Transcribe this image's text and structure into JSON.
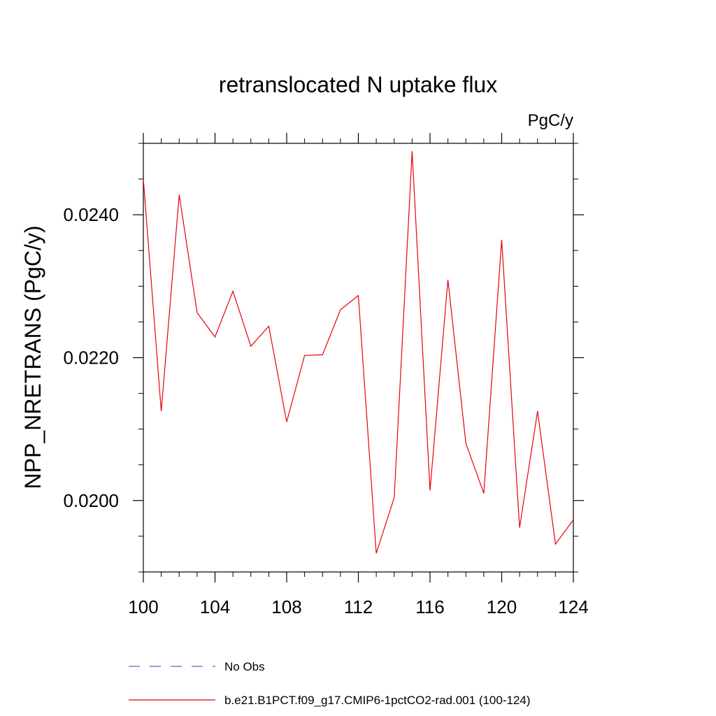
{
  "chart_data": {
    "type": "line",
    "title": "retranslocated N uptake flux",
    "units_label": "PgC/y",
    "ylabel": "NPP_NRETRANS  (PgC/y)",
    "xlabel": "",
    "xlim": [
      100,
      124
    ],
    "ylim": [
      0.019,
      0.025
    ],
    "x_ticks": [
      100,
      104,
      108,
      112,
      116,
      120,
      124
    ],
    "x_tick_labels": [
      "100",
      "104",
      "108",
      "112",
      "116",
      "120",
      "124"
    ],
    "y_ticks": [
      0.02,
      0.022,
      0.024
    ],
    "y_tick_labels": [
      "0.0200",
      "0.0220",
      "0.0240"
    ],
    "x": [
      100,
      101,
      102,
      103,
      104,
      105,
      106,
      107,
      108,
      109,
      110,
      111,
      112,
      113,
      114,
      115,
      116,
      117,
      118,
      119,
      120,
      121,
      122,
      123,
      124
    ],
    "series": [
      {
        "name": "b.e21.B1PCT.f09_g17.CMIP6-1pctCO2-rad.001 (100-124)",
        "color": "#e8000b",
        "values": [
          0.0245,
          0.02125,
          0.02428,
          0.02263,
          0.02229,
          0.02293,
          0.02216,
          0.02244,
          0.0211,
          0.02203,
          0.02204,
          0.02267,
          0.02287,
          0.01926,
          0.02004,
          0.02489,
          0.02014,
          0.02309,
          0.0208,
          0.0201,
          0.02365,
          0.01962,
          0.02125,
          0.01939,
          0.01973
        ]
      }
    ],
    "legend": {
      "placement": "bottom",
      "entries": [
        {
          "label": "No Obs",
          "color": "#6a5acd",
          "style": "dashed"
        },
        {
          "label": "b.e21.B1PCT.f09_g17.CMIP6-1pctCO2-rad.001 (100-124)",
          "color": "#e8000b",
          "style": "solid"
        }
      ]
    },
    "grid": false
  }
}
